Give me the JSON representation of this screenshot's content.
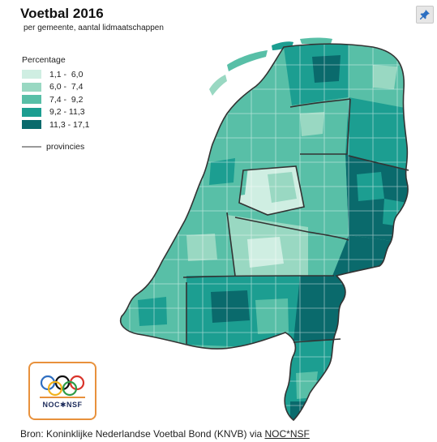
{
  "title": "Voetbal 2016",
  "subtitle": "per gemeente, aantal lidmaatschappen",
  "legend": {
    "title": "Percentage",
    "classes": [
      {
        "range": "1,1 -  6,0",
        "color": "#cfeee2"
      },
      {
        "range": "6,0 -  7,4",
        "color": "#99d8c2"
      },
      {
        "range": "7,4 -  9,2",
        "color": "#58bfa7"
      },
      {
        "range": "9,2 - 11,3",
        "color": "#1c9e91"
      },
      {
        "range": "11,3 - 17,1",
        "color": "#0a6a6c"
      }
    ],
    "provinces_label": "provincies"
  },
  "source": {
    "prefix": "Bron: Koninklijke Nederlandse Voetbal Bond (KNVB) via ",
    "link": "NOC*NSF"
  },
  "logo": {
    "text": "NOC✱NSF"
  },
  "icons": {
    "pin": "pin-icon",
    "rings": "olympic-rings-icon"
  }
}
